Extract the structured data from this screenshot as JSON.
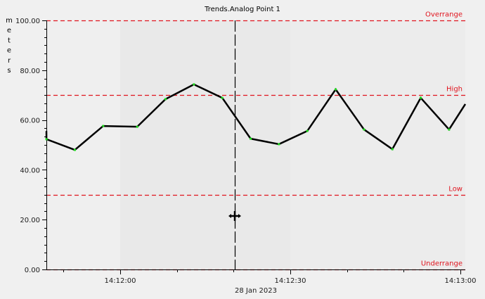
{
  "chart_data": {
    "type": "line",
    "title": "Trends.Analog Point 1",
    "xlabel": "28 Jan 2023",
    "ylabel": "meters",
    "ylim": [
      0,
      100
    ],
    "yticks": [
      "0.00",
      "20.00",
      "40.00",
      "60.00",
      "80.00",
      "100.00"
    ],
    "xticks": [
      "14:12:00",
      "14:12:30",
      "14:13:00"
    ],
    "date_label": "28 Jan 2023",
    "grid": false,
    "legend": null,
    "series": [
      {
        "name": "Analog Point 1",
        "color": "#000000",
        "marker_color": "#22dd22",
        "x": [
          "14:11:46",
          "14:11:47",
          "14:11:52",
          "14:11:57",
          "14:12:03",
          "14:12:08",
          "14:12:13",
          "14:12:18",
          "14:12:23",
          "14:12:28",
          "14:12:33",
          "14:12:38",
          "14:12:43",
          "14:12:48",
          "14:12:53",
          "14:12:58",
          "14:13:01"
        ],
        "values": [
          55.6,
          52.3,
          48.0,
          57.6,
          57.3,
          68.4,
          74.3,
          68.9,
          52.5,
          50.3,
          55.6,
          72.3,
          56.2,
          48.3,
          68.9,
          56.2,
          66.4
        ]
      }
    ],
    "limits": [
      {
        "name": "Overrange",
        "value": 100,
        "color": "#e0141e"
      },
      {
        "name": "High",
        "value": 70,
        "color": "#e0141e"
      },
      {
        "name": "Low",
        "value": 30,
        "color": "#e0141e"
      },
      {
        "name": "Underrange",
        "value": 0,
        "color": "#e0141e"
      }
    ],
    "cursor": {
      "time": "14:12:20",
      "style": "dashed vertical line"
    }
  },
  "ui": {
    "background": "#f0f0f0",
    "plot_band_light": "#efefef",
    "plot_band_dark": "#e9e9e9"
  }
}
